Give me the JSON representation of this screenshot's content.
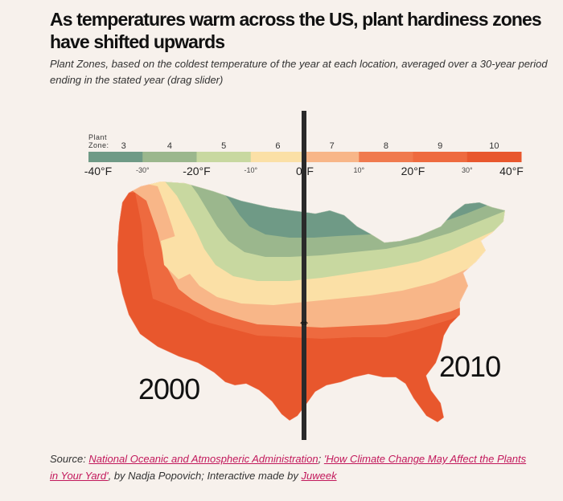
{
  "header": {
    "title": "As temperatures warm across the US, plant hardiness zones have shifted upwards",
    "subtitle": "Plant Zones, based on the coldest temperature of the year at each location, averaged over a 30-year period ending in the stated year (drag slider)"
  },
  "legend": {
    "caption_line1": "Plant",
    "caption_line2": "Zone:",
    "zones": [
      "3",
      "4",
      "5",
      "6",
      "7",
      "8",
      "9",
      "10"
    ],
    "colors": [
      "#6f9a86",
      "#9bb78d",
      "#c8d8a0",
      "#fbe0a6",
      "#f8b688",
      "#f07a4e",
      "#ee6a3f",
      "#e8572d"
    ],
    "temperature_labels": [
      {
        "text": "-40°F",
        "major": true
      },
      {
        "text": "-30°",
        "major": false
      },
      {
        "text": "-20°F",
        "major": true
      },
      {
        "text": "-10°",
        "major": false
      },
      {
        "text": "0°F",
        "major": true
      },
      {
        "text": "10°",
        "major": false
      },
      {
        "text": "20°F",
        "major": true
      },
      {
        "text": "30°",
        "major": false
      },
      {
        "text": "40°F",
        "major": true
      }
    ]
  },
  "map": {
    "left_year": "2000",
    "right_year": "2010",
    "slider_icon": "resize-horizontal-icon"
  },
  "source": {
    "prefix": "Source: ",
    "link1": "National Oceanic and Atmospheric Administration",
    "sep1": "; ",
    "link2": "'How Climate Change May Affect the Plants in Your Yard'",
    "mid": ", by Nadja Popovich; Interactive made by ",
    "link3": "Juweek"
  }
}
